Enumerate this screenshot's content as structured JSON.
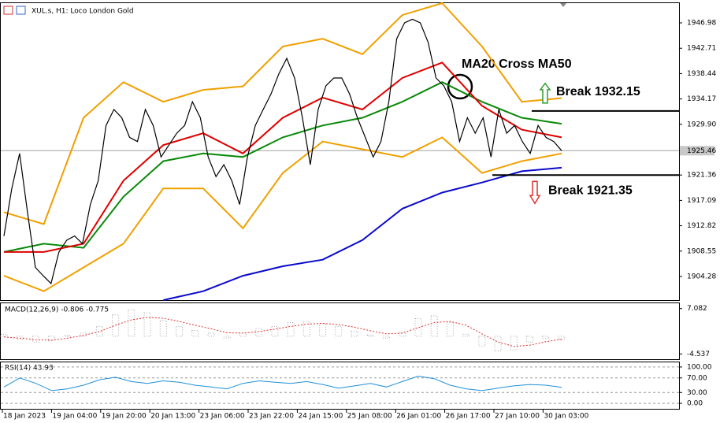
{
  "chart_data": [
    {
      "type": "price",
      "title": "XUL.s, H1: Loco London Gold",
      "ylim": [
        1900.3,
        1950.3
      ],
      "yticks": [
        1904.28,
        1908.55,
        1912.82,
        1917.09,
        1921.36,
        {
          "value": 1929.9,
          "label": "1929.90"
        },
        1934.17,
        1938.44,
        1942.71,
        1946.98
      ],
      "current_price": 1925.46,
      "xtick_labels": [
        "18 Jan 2023",
        "19 Jan 04:00",
        "19 Jan 20:00",
        "20 Jan 13:00",
        "23 Jan 06:00",
        "23 Jan 22:00",
        "24 Jan 15:00",
        "25 Jan 08:00",
        "26 Jan 01:00",
        "26 Jan 17:00",
        "27 Jan 10:00",
        "30 Jan 03:00"
      ],
      "annotation": "MA20 Cross MA50",
      "levels": [
        {
          "label": "Break 1932.15",
          "value": 1932.15,
          "color": "#2e9e2e",
          "arrow": "up"
        },
        {
          "label": "Break 1921.35",
          "value": 1921.35,
          "color": "#e03030",
          "arrow": "down"
        }
      ],
      "series": [
        {
          "color": "#f0a000",
          "values": [
            1915.1,
            1913.1,
            1931.0,
            1937.0,
            1933.7,
            1935.7,
            1936.3,
            1943.0,
            1944.3,
            1941.7,
            1948.3,
            1950.3,
            1943.0,
            1933.7,
            1934.3
          ]
        },
        {
          "color": "#f0a000",
          "values": [
            1904.4,
            1901.8,
            1905.8,
            1909.8,
            1919.1,
            1919.1,
            1912.4,
            1921.7,
            1927.0,
            1925.7,
            1924.4,
            1927.7,
            1921.7,
            1923.7,
            1925.0
          ]
        },
        {
          "color": "#0a0acc",
          "values": [
            null,
            null,
            null,
            null,
            1900.3,
            1901.8,
            1904.4,
            1906.0,
            1907.1,
            1910.4,
            1915.7,
            1918.4,
            1920.1,
            1922.0,
            1922.6
          ]
        },
        {
          "color": "#0a8a0a",
          "values": [
            1908.4,
            1909.8,
            1909.1,
            1917.7,
            1923.7,
            1925.0,
            1924.4,
            1927.7,
            1929.7,
            1931.0,
            1933.7,
            1937.0,
            1933.7,
            1931.0,
            1930.0
          ]
        },
        {
          "color": "#e00000",
          "values": [
            1908.4,
            1908.4,
            1909.8,
            1920.4,
            1926.4,
            1928.4,
            1925.0,
            1931.0,
            1934.4,
            1932.4,
            1937.7,
            1940.3,
            1933.0,
            1929.0,
            1927.7
          ]
        },
        {
          "color": "#000000",
          "values": [
            1911.1,
            1919.1,
            1925.0,
            1915.1,
            1905.8,
            1904.4,
            1903.1,
            1908.4,
            1910.4,
            1911.1,
            1909.8,
            1916.4,
            1920.4,
            1929.7,
            1932.4,
            1931.0,
            1927.7,
            1927.0,
            1932.4,
            1929.7,
            1924.4,
            1926.4,
            1928.4,
            1929.7,
            1933.7,
            1931.0,
            1924.4,
            1921.1,
            1923.1,
            1920.4,
            1916.4,
            1924.4,
            1929.7,
            1932.4,
            1935.0,
            1938.4,
            1941.0,
            1937.7,
            1931.0,
            1923.1,
            1932.4,
            1936.4,
            1937.7,
            1937.7,
            1935.0,
            1931.0,
            1927.7,
            1924.4,
            1927.0,
            1933.7,
            1944.3,
            1947.0,
            1947.6,
            1947.0,
            1943.7,
            1937.7,
            1936.4,
            1933.7,
            1927.0,
            1931.0,
            1928.4,
            1931.0,
            1924.4,
            1932.4,
            1928.4,
            1929.7,
            1927.0,
            1925.0,
            1929.7,
            1927.7,
            1927.0,
            1925.46
          ]
        }
      ]
    },
    {
      "type": "macd",
      "title": "MACD(12,26,9) -0.806 -0.775",
      "ylim": [
        -5.89,
        8.44
      ],
      "yticks": [
        -4.537,
        7.082
      ],
      "bars": {
        "color": "#a8a8a8",
        "values": [
          0.5,
          -0.8,
          -1.5,
          -1.2,
          0.2,
          0.8,
          2.5,
          5.5,
          6.8,
          6.0,
          4.0,
          2.5,
          1.5,
          0.8,
          -0.5,
          0.8,
          2.0,
          2.5,
          3.5,
          3.8,
          3.2,
          2.5,
          1.2,
          0.3,
          -0.5,
          1.0,
          4.5,
          5.2,
          3.5,
          0.5,
          -2.5,
          -3.8,
          -3.5,
          -1.5,
          -0.6,
          -0.806
        ]
      },
      "signal": {
        "color": "#e03030",
        "values": [
          -0.2,
          -0.5,
          -0.9,
          -1.0,
          -0.5,
          0.2,
          1.2,
          2.8,
          4.2,
          4.8,
          4.6,
          3.8,
          2.8,
          1.9,
          0.9,
          0.8,
          1.2,
          1.8,
          2.5,
          3.1,
          3.3,
          3.0,
          2.3,
          1.4,
          0.6,
          0.8,
          2.2,
          3.5,
          3.8,
          2.8,
          0.6,
          -1.5,
          -2.6,
          -2.3,
          -1.4,
          -0.775
        ]
      }
    },
    {
      "type": "rsi",
      "title": "RSI(14) 43.93",
      "ylim": [
        -14.9,
        112.8
      ],
      "yticks": [
        {
          "value": 0,
          "label": "0.00"
        },
        {
          "value": 30,
          "label": "30.00"
        },
        {
          "value": 70,
          "label": "70.00"
        },
        {
          "value": 100,
          "label": "100.00"
        }
      ],
      "color": "#1e8fd8",
      "values": [
        45,
        70,
        55,
        35,
        40,
        50,
        65,
        72,
        60,
        55,
        62,
        58,
        50,
        45,
        40,
        55,
        62,
        58,
        55,
        60,
        52,
        42,
        48,
        55,
        45,
        60,
        75,
        68,
        50,
        40,
        35,
        42,
        48,
        52,
        50,
        43.93
      ]
    }
  ]
}
